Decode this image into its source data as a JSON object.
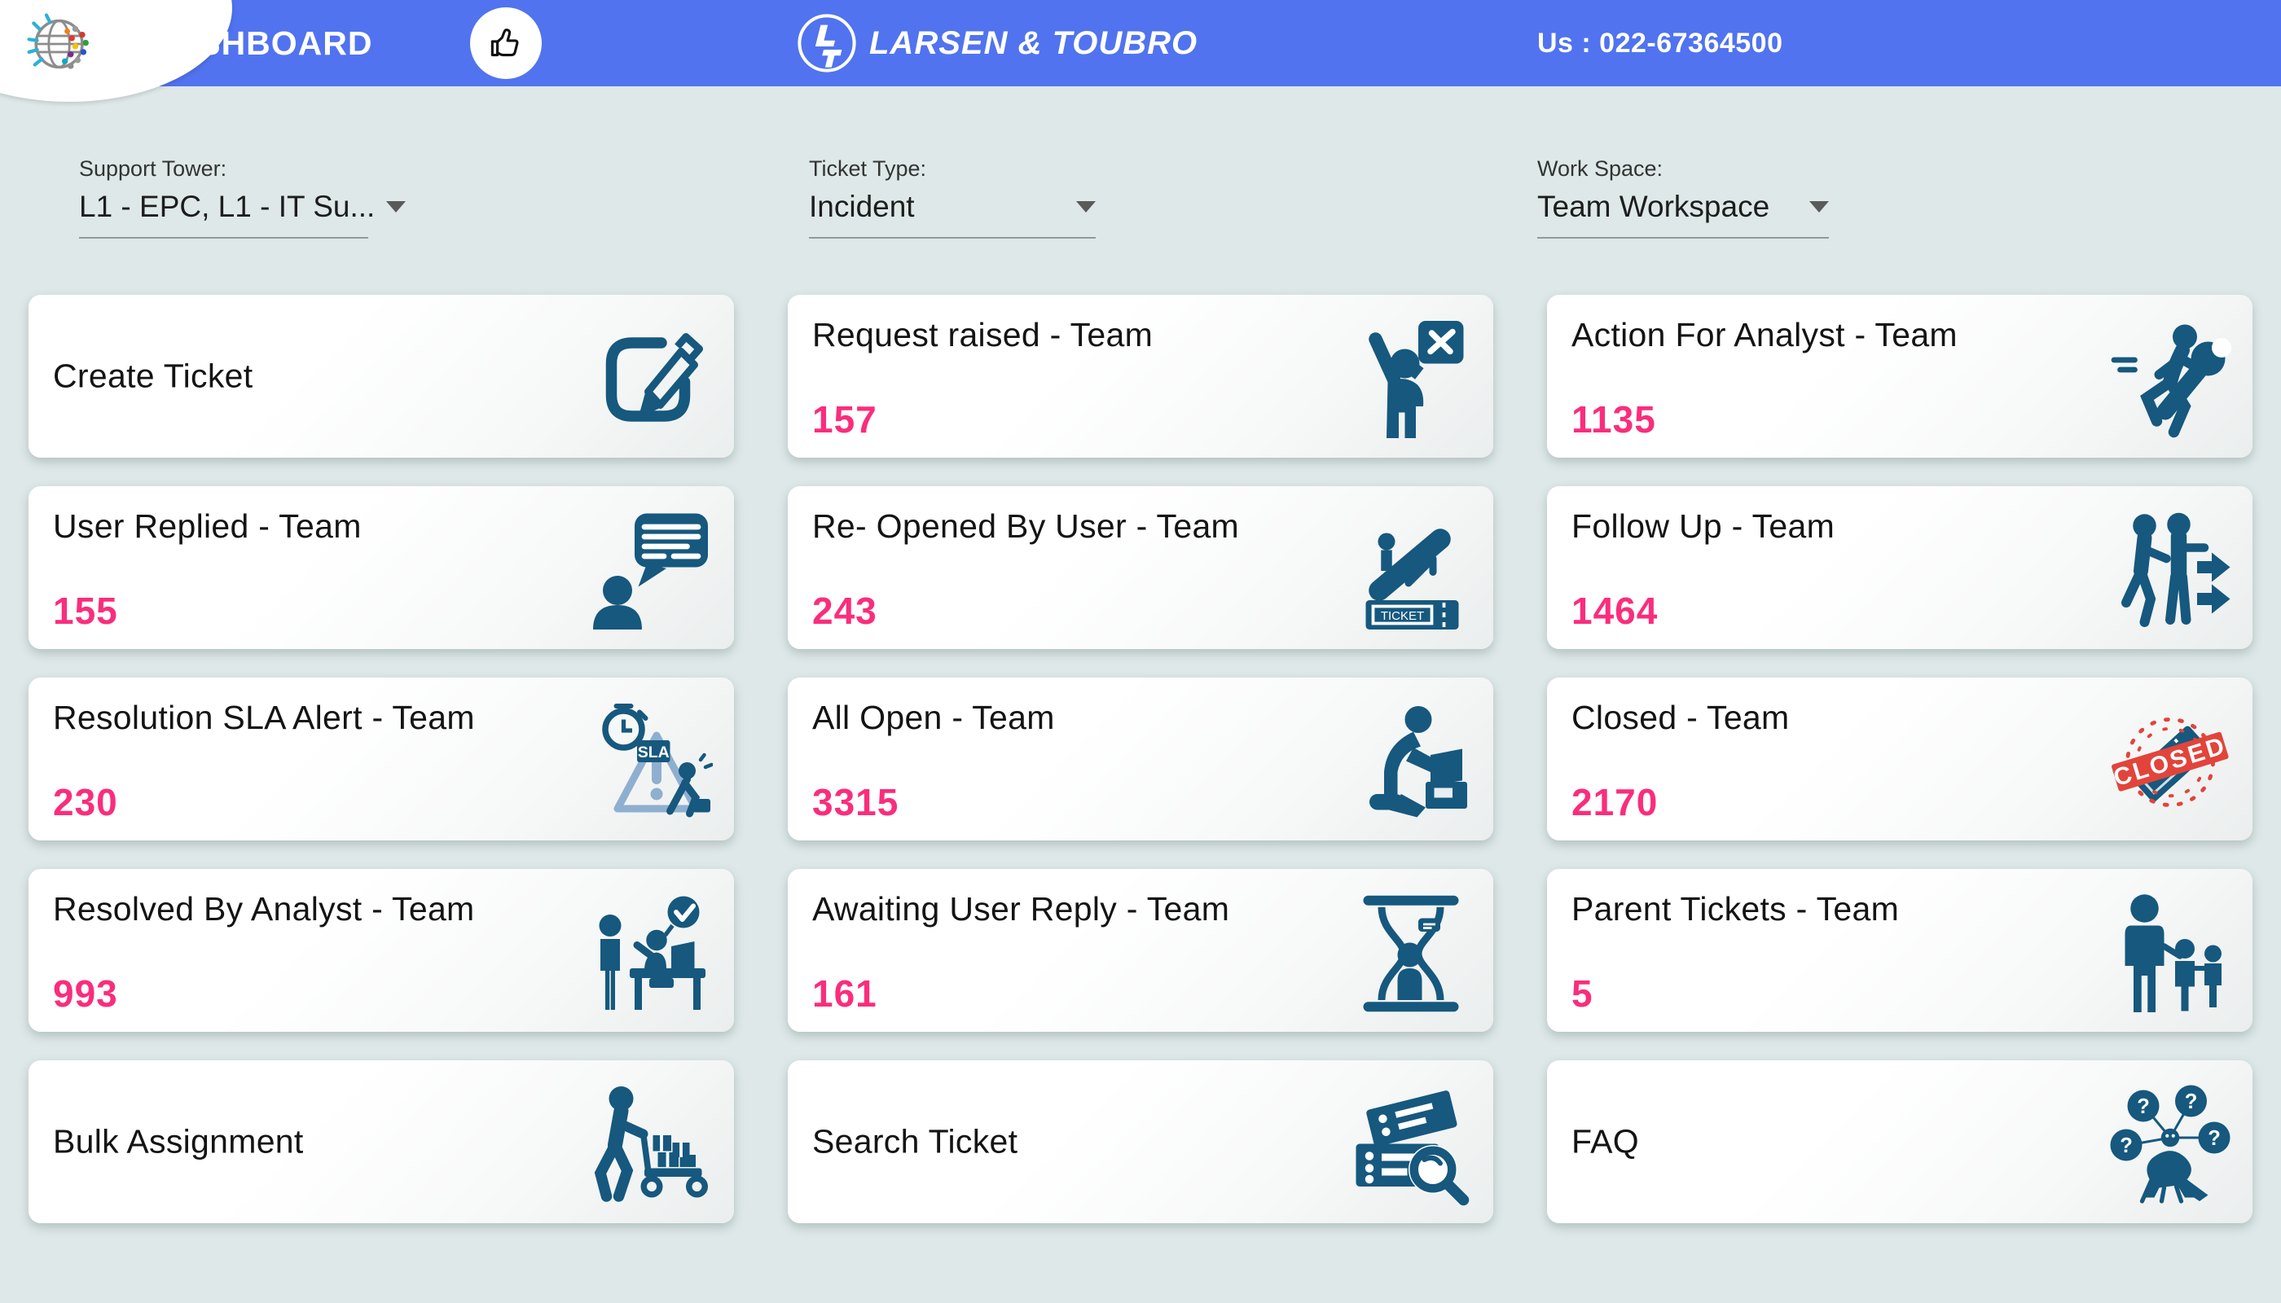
{
  "header": {
    "title": "DASHBOARD",
    "brand": "LARSEN & TOUBRO",
    "phone": "Us : 022-67364500"
  },
  "filters": [
    {
      "label": "Support Tower:",
      "value": "L1 - EPC, L1 - IT Su..."
    },
    {
      "label": "Ticket Type:",
      "value": "Incident"
    },
    {
      "label": "Work Space:",
      "value": "Team Workspace"
    }
  ],
  "cards": [
    {
      "title": "Create Ticket",
      "count": null,
      "icon": "create-ticket-icon"
    },
    {
      "title": "Request raised - Team",
      "count": "157",
      "icon": "request-raised-icon"
    },
    {
      "title": "Action For Analyst - Team",
      "count": "1135",
      "icon": "action-for-analyst-icon"
    },
    {
      "title": "User Replied - Team",
      "count": "155",
      "icon": "user-replied-icon"
    },
    {
      "title": "Re- Opened By User - Team",
      "count": "243",
      "icon": "reopened-by-user-icon"
    },
    {
      "title": "Follow Up - Team",
      "count": "1464",
      "icon": "follow-up-icon"
    },
    {
      "title": "Resolution SLA Alert - Team",
      "count": "230",
      "icon": "sla-alert-icon"
    },
    {
      "title": "All Open - Team",
      "count": "3315",
      "icon": "all-open-icon"
    },
    {
      "title": "Closed - Team",
      "count": "2170",
      "icon": "closed-icon"
    },
    {
      "title": "Resolved By Analyst - Team",
      "count": "993",
      "icon": "resolved-by-analyst-icon"
    },
    {
      "title": "Awaiting User Reply - Team",
      "count": "161",
      "icon": "awaiting-user-reply-icon"
    },
    {
      "title": "Parent Tickets - Team",
      "count": "5",
      "icon": "parent-tickets-icon"
    },
    {
      "title": "Bulk Assignment",
      "count": null,
      "icon": "bulk-assignment-icon"
    },
    {
      "title": "Search Ticket",
      "count": null,
      "icon": "search-ticket-icon"
    },
    {
      "title": "FAQ",
      "count": null,
      "icon": "faq-icon"
    }
  ],
  "colors": {
    "header_bg": "#5173ef",
    "page_bg": "#dee8e8",
    "accent_pink": "#fa2d7c",
    "icon_teal": "#16587e",
    "stamp_red": "#e2443b",
    "alert_triangle_blue": "#8fafd0"
  }
}
